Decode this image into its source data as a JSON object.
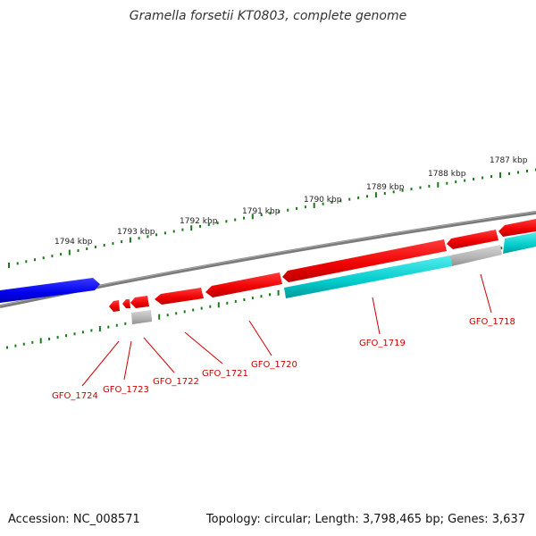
{
  "title": "Gramella forsetii KT0803, complete genome",
  "accession": "Accession: NC_008571",
  "summary": "Topology: circular; Length: 3,798,465 bp; Genes: 3,637",
  "kbp_labels": [
    "1794 kbp",
    "1793 kbp",
    "1792 kbp",
    "1791 kbp",
    "1790 kbp",
    "1789 kbp",
    "1788 kbp",
    "1787 kbp"
  ],
  "gene_labels": [
    "GFO_1724",
    "GFO_1723",
    "GFO_1722",
    "GFO_1721",
    "GFO_1720",
    "GFO_1719",
    "GFO_1718"
  ],
  "colors": {
    "forward": "#0000ee",
    "reverse": "#ee0000",
    "rna": "#00cccc",
    "gray": "#b0b0b0",
    "backbone": "#808080",
    "ticks": "#1a7a1a",
    "label": "#cc0000"
  }
}
